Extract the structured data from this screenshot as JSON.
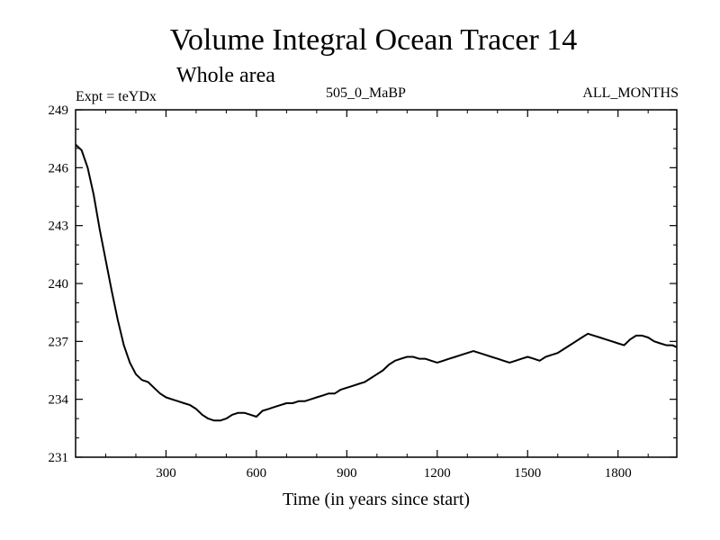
{
  "header": {
    "title": "Volume Integral Ocean Tracer 14",
    "subtitle": "Whole area",
    "experiment": "Expt = teYDx",
    "period": "505_0_MaBP",
    "months": "ALL_MONTHS"
  },
  "chart_data": {
    "type": "line",
    "title": "Volume Integral Ocean Tracer 14",
    "subtitle": "Whole area",
    "xlabel": "Time (in years since start)",
    "ylabel": "",
    "xlim": [
      0,
      1995
    ],
    "ylim": [
      231,
      249
    ],
    "xticks": [
      300,
      600,
      900,
      1200,
      1500,
      1800
    ],
    "yticks": [
      231,
      234,
      237,
      240,
      243,
      246,
      249
    ],
    "grid": false,
    "series": [
      {
        "name": "Ocean Tracer 14",
        "x": [
          0,
          20,
          40,
          60,
          80,
          100,
          120,
          140,
          160,
          180,
          200,
          220,
          240,
          260,
          280,
          300,
          320,
          340,
          360,
          380,
          400,
          420,
          440,
          460,
          480,
          500,
          520,
          540,
          560,
          580,
          600,
          620,
          640,
          660,
          680,
          700,
          720,
          740,
          760,
          780,
          800,
          820,
          840,
          860,
          880,
          900,
          920,
          940,
          960,
          980,
          1000,
          1020,
          1040,
          1060,
          1080,
          1100,
          1120,
          1140,
          1160,
          1180,
          1200,
          1220,
          1240,
          1260,
          1280,
          1300,
          1320,
          1340,
          1360,
          1380,
          1400,
          1420,
          1440,
          1460,
          1480,
          1500,
          1520,
          1540,
          1560,
          1580,
          1600,
          1620,
          1640,
          1660,
          1680,
          1700,
          1720,
          1740,
          1760,
          1780,
          1800,
          1820,
          1840,
          1860,
          1880,
          1900,
          1920,
          1940,
          1960,
          1980,
          1995
        ],
        "y": [
          247.2,
          246.9,
          246.0,
          244.6,
          242.8,
          241.2,
          239.6,
          238.1,
          236.8,
          235.9,
          235.3,
          235.0,
          234.9,
          234.6,
          234.3,
          234.1,
          234.0,
          233.9,
          233.8,
          233.7,
          233.5,
          233.2,
          233.0,
          232.9,
          232.9,
          233.0,
          233.2,
          233.3,
          233.3,
          233.2,
          233.1,
          233.4,
          233.5,
          233.6,
          233.7,
          233.8,
          233.8,
          233.9,
          233.9,
          234.0,
          234.1,
          234.2,
          234.3,
          234.3,
          234.5,
          234.6,
          234.7,
          234.8,
          234.9,
          235.1,
          235.3,
          235.5,
          235.8,
          236.0,
          236.1,
          236.2,
          236.2,
          236.1,
          236.1,
          236.0,
          235.9,
          236.0,
          236.1,
          236.2,
          236.3,
          236.4,
          236.5,
          236.4,
          236.3,
          236.2,
          236.1,
          236.0,
          235.9,
          236.0,
          236.1,
          236.2,
          236.1,
          236.0,
          236.2,
          236.3,
          236.4,
          236.6,
          236.8,
          237.0,
          237.2,
          237.4,
          237.3,
          237.2,
          237.1,
          237.0,
          236.9,
          236.8,
          237.1,
          237.3,
          237.3,
          237.2,
          237.0,
          236.9,
          236.8,
          236.8,
          236.7
        ]
      }
    ]
  }
}
